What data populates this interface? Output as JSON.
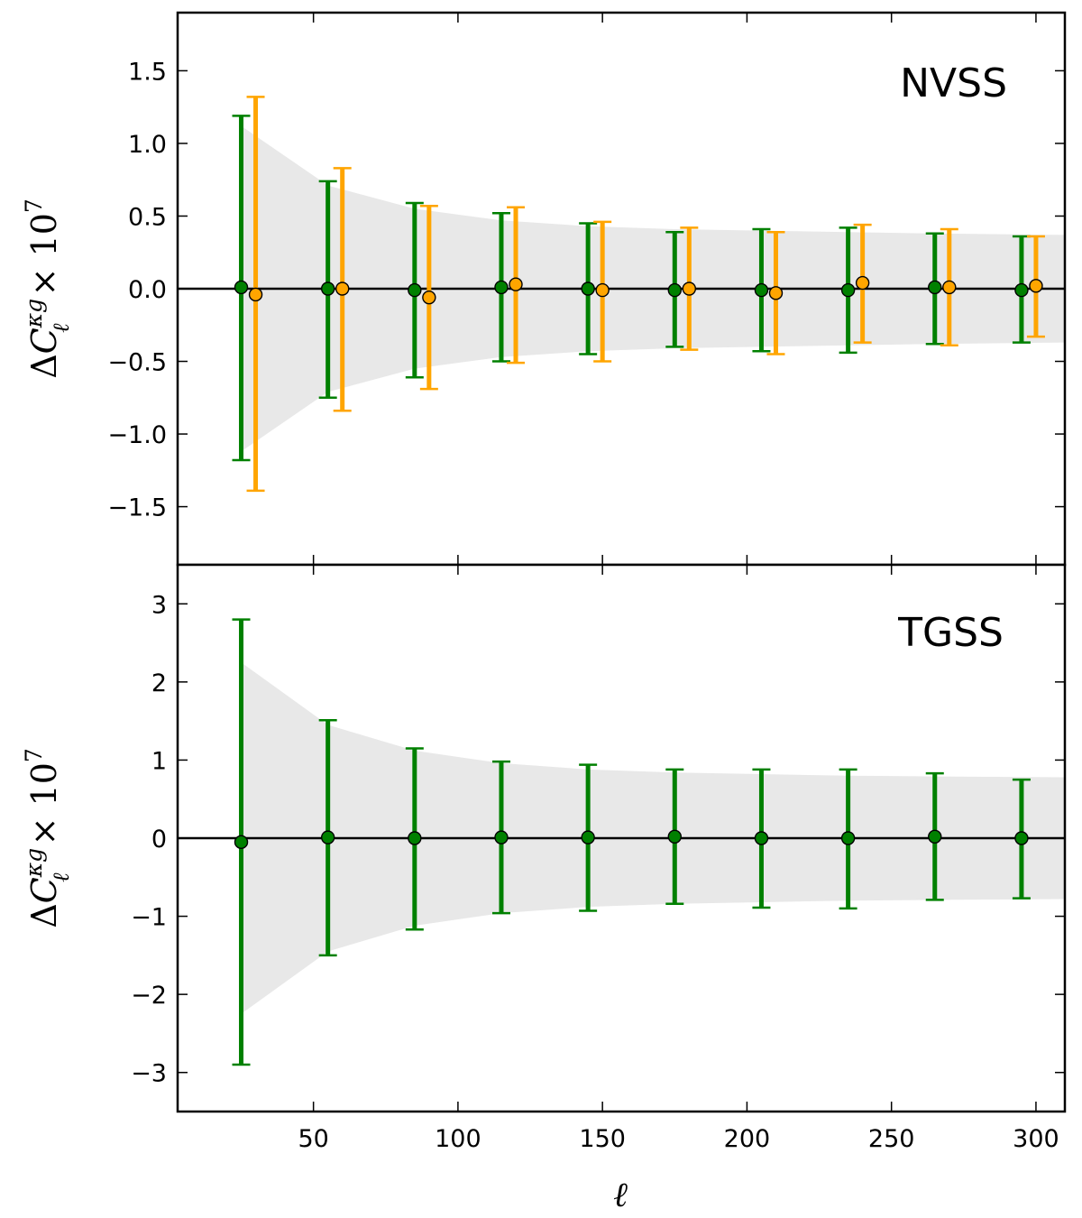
{
  "chart_data": [
    {
      "panel": "top",
      "type": "scatter",
      "annotation": "NVSS",
      "xlabel": "",
      "ylabel": "ΔC_ℓ^{κg} × 10^7",
      "ylabel_parts": {
        "delta": "Δ",
        "C": "C",
        "sup": "κg",
        "sub": "ℓ",
        "times": "× 10",
        "exp": "7"
      },
      "xlim": [
        3,
        310
      ],
      "ylim": [
        -1.9,
        1.9
      ],
      "xticks": [
        50,
        100,
        150,
        200,
        250,
        300
      ],
      "xtick_labels": [
        "",
        "",
        "",
        "",
        "",
        ""
      ],
      "yticks": [
        -1.5,
        -1.0,
        -0.5,
        0.0,
        0.5,
        1.0,
        1.5
      ],
      "ytick_labels": [
        "−1.5",
        "−1.0",
        "−0.5",
        "0.0",
        "0.5",
        "1.0",
        "1.5"
      ],
      "zero_line": true,
      "band": {
        "x": [
          25,
          55,
          85,
          115,
          145,
          175,
          205,
          235,
          265,
          310
        ],
        "half_width": [
          1.12,
          0.71,
          0.55,
          0.47,
          0.43,
          0.41,
          0.4,
          0.39,
          0.38,
          0.37
        ]
      },
      "series": [
        {
          "name": "green",
          "color": "#008000",
          "x": [
            25,
            55,
            85,
            115,
            145,
            175,
            205,
            235,
            265,
            295
          ],
          "y": [
            0.01,
            0.0,
            -0.01,
            0.01,
            0.0,
            -0.01,
            -0.01,
            -0.01,
            0.01,
            -0.01
          ],
          "err_lo": [
            -1.18,
            -0.75,
            -0.61,
            -0.5,
            -0.45,
            -0.4,
            -0.43,
            -0.44,
            -0.38,
            -0.37
          ],
          "err_hi": [
            1.19,
            0.74,
            0.59,
            0.52,
            0.45,
            0.39,
            0.41,
            0.42,
            0.38,
            0.36
          ]
        },
        {
          "name": "orange",
          "color": "#FFA500",
          "x": [
            30,
            60,
            90,
            120,
            150,
            180,
            210,
            240,
            270,
            300
          ],
          "y": [
            -0.04,
            0.0,
            -0.06,
            0.03,
            -0.01,
            0.0,
            -0.03,
            0.04,
            0.01,
            0.02
          ],
          "err_lo": [
            -1.39,
            -0.84,
            -0.69,
            -0.51,
            -0.5,
            -0.42,
            -0.45,
            -0.37,
            -0.39,
            -0.33
          ],
          "err_hi": [
            1.32,
            0.83,
            0.57,
            0.56,
            0.46,
            0.42,
            0.39,
            0.44,
            0.41,
            0.36
          ]
        }
      ]
    },
    {
      "panel": "bottom",
      "type": "scatter",
      "annotation": "TGSS",
      "xlabel": "ℓ",
      "ylabel": "ΔC_ℓ^{κg} × 10^7",
      "ylabel_parts": {
        "delta": "Δ",
        "C": "C",
        "sup": "κg",
        "sub": "ℓ",
        "times": "× 10",
        "exp": "7"
      },
      "xlim": [
        3,
        310
      ],
      "ylim": [
        -3.5,
        3.5
      ],
      "xticks": [
        50,
        100,
        150,
        200,
        250,
        300
      ],
      "xtick_labels": [
        "50",
        "100",
        "150",
        "200",
        "250",
        "300"
      ],
      "yticks": [
        -3,
        -2,
        -1,
        0,
        1,
        2,
        3
      ],
      "ytick_labels": [
        "−3",
        "−2",
        "−1",
        "0",
        "1",
        "2",
        "3"
      ],
      "zero_line": true,
      "band": {
        "x": [
          25,
          55,
          85,
          115,
          145,
          175,
          205,
          235,
          265,
          310
        ],
        "half_width": [
          2.25,
          1.45,
          1.12,
          0.96,
          0.88,
          0.84,
          0.82,
          0.8,
          0.79,
          0.78
        ]
      },
      "series": [
        {
          "name": "green",
          "color": "#008000",
          "x": [
            25,
            55,
            85,
            115,
            145,
            175,
            205,
            235,
            265,
            295
          ],
          "y": [
            -0.05,
            0.01,
            0.0,
            0.01,
            0.01,
            0.02,
            0.0,
            0.0,
            0.02,
            0.0
          ],
          "err_lo": [
            -2.9,
            -1.5,
            -1.17,
            -0.96,
            -0.93,
            -0.84,
            -0.89,
            -0.9,
            -0.79,
            -0.77
          ],
          "err_hi": [
            2.8,
            1.51,
            1.15,
            0.98,
            0.94,
            0.88,
            0.88,
            0.88,
            0.83,
            0.75
          ]
        }
      ]
    }
  ]
}
